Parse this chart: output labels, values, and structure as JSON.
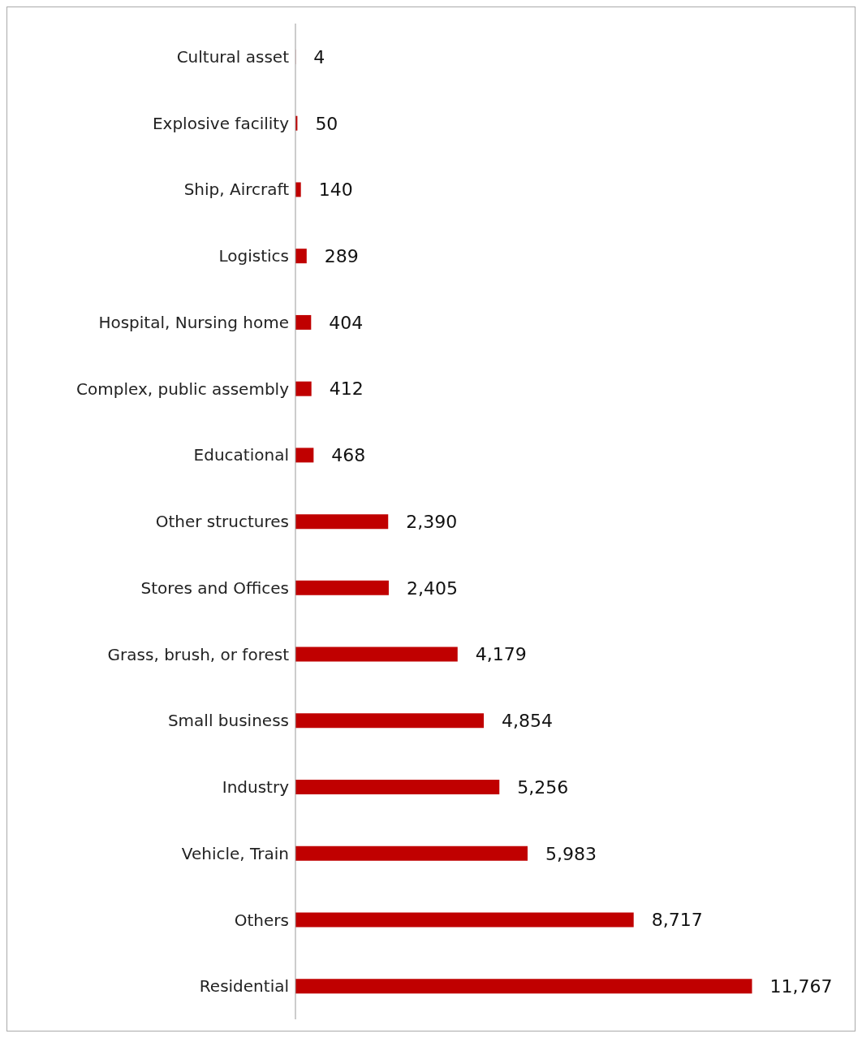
{
  "chart_data": {
    "type": "bar",
    "orientation": "horizontal",
    "categories": [
      "Cultural asset",
      "Explosive facility",
      "Ship, Aircraft",
      "Logistics",
      "Hospital, Nursing home",
      "Complex, public assembly",
      "Educational",
      "Other structures",
      "Stores and Offices",
      "Grass, brush, or forest",
      "Small business",
      "Industry",
      "Vehicle, Train",
      "Others",
      "Residential"
    ],
    "values": [
      4,
      50,
      140,
      289,
      404,
      412,
      468,
      2390,
      2405,
      4179,
      4854,
      5256,
      5983,
      8717,
      11767
    ],
    "value_labels": [
      "4",
      "50",
      "140",
      "289",
      "404",
      "412",
      "468",
      "2,390",
      "2,405",
      "4,179",
      "4,854",
      "5,256",
      "5,983",
      "8,717",
      "11,767"
    ],
    "color": "#c00000"
  }
}
